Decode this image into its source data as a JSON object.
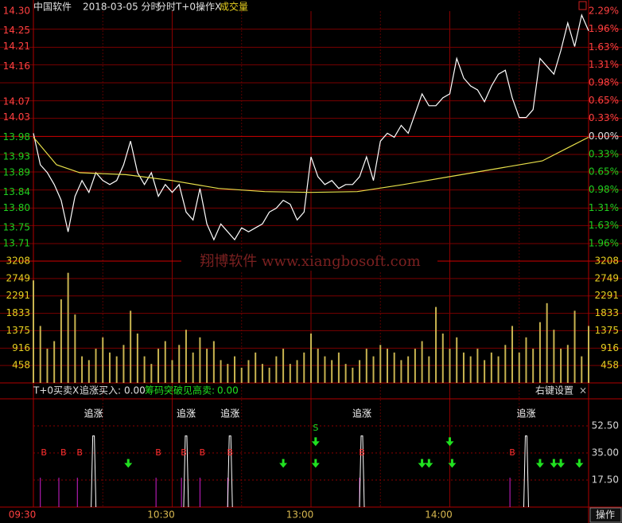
{
  "chart_data": [
    {
      "type": "line",
      "title": "中国软件",
      "subtitle": "2018-03-05 分时",
      "label": "分时T+0操作X",
      "xlim": [
        0,
        240
      ],
      "xticks": [
        {
          "value": 0,
          "label": "09:30"
        },
        {
          "value": 60,
          "label": "10:30"
        },
        {
          "value": 120,
          "label": "13:00"
        },
        {
          "value": 180,
          "label": "14:00"
        }
      ],
      "ylim": [
        13.71,
        14.3
      ],
      "yticks": [
        {
          "value": 14.3,
          "label": "14.30"
        },
        14.25,
        14.21,
        14.16,
        14.07,
        14.03,
        13.98,
        13.93,
        13.89,
        13.84,
        {
          "value": 13.8,
          "label": "13.80"
        },
        13.75,
        13.71
      ],
      "y2lim": [
        -1.96,
        2.29
      ],
      "y2ticks": [
        {
          "value": 2.29,
          "label": "2.29%"
        },
        {
          "value": 1.96,
          "label": "1.96%"
        },
        {
          "value": 1.63,
          "label": "1.63%"
        },
        {
          "value": 1.31,
          "label": "1.31%"
        },
        {
          "value": 0.98,
          "label": "0.98%"
        },
        {
          "value": 0.65,
          "label": "0.65%"
        },
        {
          "value": 0.33,
          "label": "0.33%"
        },
        {
          "value": 0,
          "label": "0.00%"
        },
        {
          "value": -0.33,
          "label": "0.33%"
        },
        {
          "value": -0.65,
          "label": "0.65%"
        },
        {
          "value": -0.98,
          "label": "0.98%"
        },
        {
          "value": -1.31,
          "label": "1.31%"
        },
        {
          "value": -1.63,
          "label": "1.63%"
        },
        {
          "value": -1.96,
          "label": "1.96%"
        }
      ],
      "grid": true,
      "grid_color": "#7a0000",
      "series": [
        {
          "color": "#ffffff",
          "x": [
            0,
            3,
            6,
            9,
            12,
            15,
            18,
            21,
            24,
            27,
            30,
            33,
            36,
            39,
            42,
            45,
            48,
            51,
            54,
            57,
            60,
            63,
            66,
            69,
            72,
            75,
            78,
            81,
            84,
            87,
            90,
            93,
            96,
            99,
            102,
            105,
            108,
            111,
            114,
            117,
            120,
            123,
            126,
            129,
            132,
            135,
            138,
            141,
            144,
            147,
            150,
            153,
            156,
            159,
            162,
            165,
            168,
            171,
            174,
            177,
            180,
            183,
            186,
            189,
            192,
            195,
            198,
            201,
            204,
            207,
            210,
            213,
            216,
            219,
            222,
            225,
            228,
            231,
            234,
            237,
            240
          ],
          "values": [
            13.99,
            13.91,
            13.89,
            13.86,
            13.82,
            13.74,
            13.83,
            13.87,
            13.84,
            13.89,
            13.87,
            13.86,
            13.87,
            13.91,
            13.97,
            13.89,
            13.86,
            13.89,
            13.83,
            13.86,
            13.84,
            13.86,
            13.79,
            13.77,
            13.85,
            13.76,
            13.72,
            13.76,
            13.74,
            13.72,
            13.75,
            13.74,
            13.75,
            13.76,
            13.79,
            13.8,
            13.82,
            13.81,
            13.77,
            13.79,
            13.93,
            13.88,
            13.86,
            13.87,
            13.85,
            13.86,
            13.86,
            13.88,
            13.93,
            13.87,
            13.97,
            13.99,
            13.98,
            14.01,
            13.99,
            14.04,
            14.09,
            14.06,
            14.06,
            14.08,
            14.09,
            14.18,
            14.13,
            14.11,
            14.1,
            14.07,
            14.11,
            14.14,
            14.15,
            14.08,
            14.03,
            14.03,
            14.05,
            14.18,
            14.16,
            14.14,
            14.2,
            14.27,
            14.21,
            14.29,
            14.25
          ]
        },
        {
          "color": "#e8e04a",
          "x": [
            0,
            10,
            20,
            40,
            60,
            80,
            100,
            120,
            140,
            160,
            180,
            200,
            220,
            230,
            240
          ],
          "values": [
            13.98,
            13.91,
            13.89,
            13.885,
            13.87,
            13.85,
            13.842,
            13.84,
            13.842,
            13.86,
            13.88,
            13.9,
            13.92,
            13.95,
            13.98
          ]
        }
      ]
    },
    {
      "type": "bar",
      "title": "成交量",
      "color": "#c8b450",
      "ylim": [
        0,
        3208
      ],
      "yticks": [
        458,
        916,
        1375,
        1833,
        2291,
        2749,
        3208
      ],
      "x": [
        0,
        3,
        6,
        9,
        12,
        15,
        18,
        21,
        24,
        27,
        30,
        33,
        36,
        39,
        42,
        45,
        48,
        51,
        54,
        57,
        60,
        63,
        66,
        69,
        72,
        75,
        78,
        81,
        84,
        87,
        90,
        93,
        96,
        99,
        102,
        105,
        108,
        111,
        114,
        117,
        120,
        123,
        126,
        129,
        132,
        135,
        138,
        141,
        144,
        147,
        150,
        153,
        156,
        159,
        162,
        165,
        168,
        171,
        174,
        177,
        180,
        183,
        186,
        189,
        192,
        195,
        198,
        201,
        204,
        207,
        210,
        213,
        216,
        219,
        222,
        225,
        228,
        231,
        234,
        237,
        240
      ],
      "values": [
        2700,
        1500,
        900,
        1100,
        2200,
        2900,
        1800,
        700,
        600,
        900,
        1200,
        800,
        700,
        1000,
        1900,
        1300,
        700,
        500,
        900,
        1100,
        600,
        1000,
        1400,
        800,
        1200,
        900,
        1100,
        600,
        500,
        700,
        400,
        600,
        800,
        500,
        400,
        700,
        900,
        500,
        600,
        800,
        1300,
        900,
        700,
        600,
        800,
        500,
        400,
        600,
        900,
        700,
        1000,
        900,
        800,
        600,
        700,
        900,
        1100,
        700,
        2000,
        1300,
        900,
        1200,
        800,
        700,
        900,
        600,
        800,
        700,
        1000,
        1500,
        800,
        1200,
        900,
        1600,
        2100,
        1400,
        900,
        1000,
        1900,
        700,
        1500
      ]
    },
    {
      "type": "signal",
      "title": "T+0买卖X",
      "names": [
        "追涨买入:",
        "筹码突破见高卖:"
      ],
      "values": [
        0,
        0
      ],
      "value_labels": [
        "0.00",
        "0.00"
      ],
      "ylim": [
        0,
        70
      ],
      "yticks": [
        {
          "value": 17.5,
          "label": "17.50"
        },
        {
          "value": 35,
          "label": "35.00"
        },
        {
          "value": 52.5,
          "label": "52.50"
        }
      ],
      "chase_label": "追涨",
      "spikes": {
        "x": [
          26,
          66,
          85,
          142,
          213
        ],
        "values": [
          46,
          46,
          46,
          46,
          46
        ]
      },
      "b_markers": {
        "label": "B",
        "x": [
          4.5,
          13,
          20,
          54,
          65,
          73,
          85,
          142,
          207
        ],
        "values": [
          35,
          35,
          35,
          35,
          35,
          35,
          35,
          35,
          35
        ]
      },
      "bars": {
        "x": [
          3,
          11,
          19,
          53,
          64,
          72,
          84,
          141,
          206
        ],
        "values": [
          19,
          19,
          19,
          19,
          19,
          19,
          19,
          19,
          19
        ]
      },
      "arrows": {
        "x": [
          41,
          108,
          122,
          122,
          168,
          171,
          180,
          181,
          219,
          225,
          228,
          236
        ],
        "values": [
          28,
          28,
          42,
          28,
          28,
          28,
          42,
          28,
          28,
          28,
          28,
          28
        ]
      },
      "s_marker": {
        "label": "S",
        "x": 122,
        "value": 51
      }
    }
  ],
  "ui": {
    "settings": "右键设置",
    "close": "×",
    "operate": "操作",
    "watermark": "翔博软件 www.xiangbosoft.com"
  }
}
